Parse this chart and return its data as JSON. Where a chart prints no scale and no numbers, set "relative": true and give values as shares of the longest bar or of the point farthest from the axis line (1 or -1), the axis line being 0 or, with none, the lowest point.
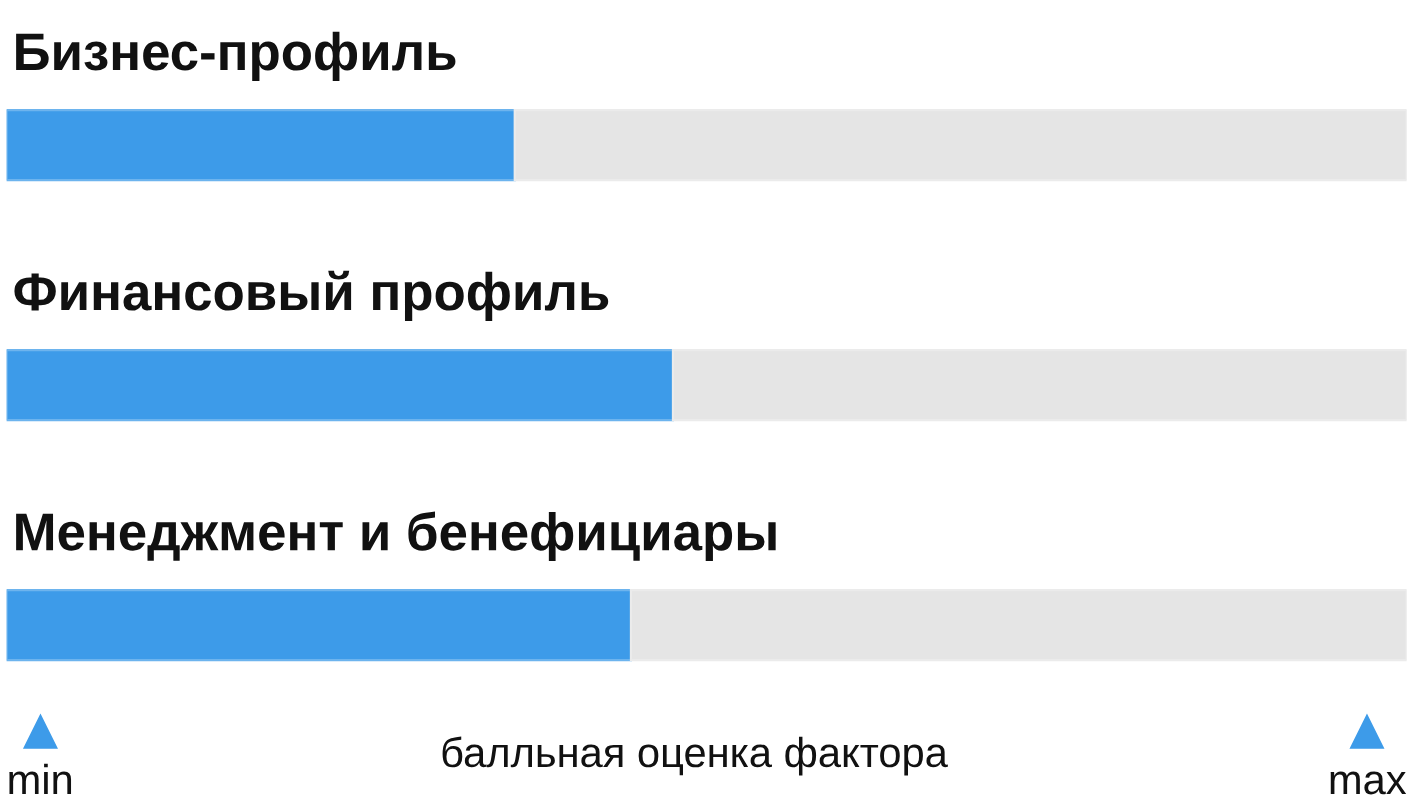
{
  "chart_data": {
    "type": "bar",
    "orientation": "horizontal",
    "stacked": true,
    "relative": true,
    "categories": [
      "Бизнес-профиль",
      "Финансовый профиль",
      "Менеджмент и бенефициары"
    ],
    "series": [
      {
        "color": "#3d9be9",
        "values": [
          0.363,
          0.476,
          0.446
        ]
      },
      {
        "color": "#e5e5e5",
        "values": [
          0.637,
          0.524,
          0.554
        ]
      }
    ],
    "xlabel": "балльная оценка фактора",
    "annotations": [
      "min",
      "max"
    ]
  }
}
